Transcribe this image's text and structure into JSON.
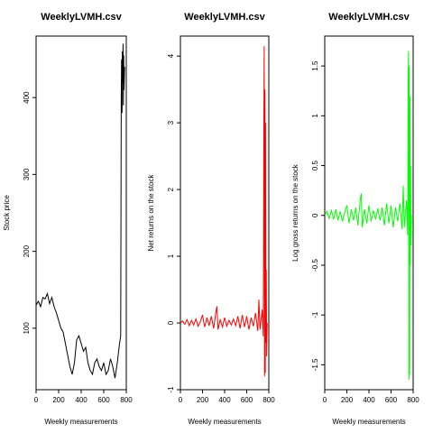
{
  "chart_data": [
    {
      "type": "line",
      "title": "WeeklyLVMH.csv",
      "xlabel": "Weekly measurements",
      "ylabel": "Stock price",
      "xlim": [
        0,
        800
      ],
      "ylim": [
        20,
        480
      ],
      "xticks": [
        0,
        200,
        400,
        600,
        800
      ],
      "yticks": [
        100,
        200,
        300,
        400
      ],
      "grid": false,
      "color": "#000000",
      "x": [
        0,
        20,
        40,
        60,
        80,
        100,
        120,
        140,
        160,
        180,
        200,
        220,
        240,
        260,
        280,
        300,
        320,
        340,
        360,
        380,
        400,
        420,
        440,
        460,
        480,
        500,
        520,
        540,
        560,
        580,
        600,
        620,
        640,
        660,
        680,
        700,
        720,
        740,
        750,
        755,
        758,
        762,
        765,
        768,
        771,
        774,
        777,
        780,
        785
      ],
      "y": [
        130,
        135,
        128,
        140,
        138,
        145,
        132,
        140,
        128,
        120,
        110,
        100,
        95,
        80,
        65,
        50,
        40,
        55,
        85,
        90,
        80,
        70,
        75,
        55,
        45,
        40,
        55,
        60,
        50,
        45,
        55,
        40,
        45,
        60,
        50,
        35,
        55,
        80,
        90,
        400,
        450,
        380,
        460,
        420,
        470,
        390,
        455,
        410,
        440
      ]
    },
    {
      "type": "line",
      "title": "WeeklyLVMH.csv",
      "xlabel": "Weekly measurements",
      "ylabel": "Net returns on the stock",
      "xlim": [
        0,
        800
      ],
      "ylim": [
        -1,
        4.3
      ],
      "xticks": [
        0,
        200,
        400,
        600,
        800
      ],
      "yticks": [
        -1,
        0,
        1,
        2,
        3,
        4
      ],
      "grid": false,
      "color": "#ff0000",
      "x": [
        0,
        20,
        40,
        60,
        80,
        100,
        120,
        140,
        160,
        180,
        200,
        220,
        240,
        260,
        280,
        300,
        320,
        330,
        340,
        360,
        380,
        400,
        420,
        440,
        460,
        480,
        500,
        520,
        540,
        560,
        580,
        600,
        620,
        640,
        660,
        680,
        700,
        710,
        720,
        740,
        750,
        755,
        758,
        762,
        765,
        768,
        771,
        774,
        777,
        780,
        785
      ],
      "y": [
        0.0,
        0.03,
        -0.02,
        0.05,
        -0.04,
        0.04,
        -0.03,
        0.06,
        -0.05,
        0.02,
        0.12,
        -0.06,
        0.08,
        -0.04,
        0.1,
        -0.08,
        0.15,
        0.25,
        -0.1,
        0.05,
        -0.06,
        0.08,
        -0.05,
        0.04,
        -0.03,
        0.06,
        -0.04,
        0.1,
        -0.08,
        0.12,
        -0.06,
        0.1,
        -0.1,
        0.08,
        -0.05,
        0.15,
        -0.12,
        0.35,
        -0.1,
        0.2,
        -0.2,
        3.0,
        4.15,
        -0.8,
        3.5,
        -0.75,
        3.0,
        -0.3,
        0.8,
        -0.5,
        0.0
      ]
    },
    {
      "type": "line",
      "title": "WeeklyLVMH.csv",
      "xlabel": "Weekly measurements",
      "ylabel": "Log gross returns on the stock",
      "xlim": [
        0,
        800
      ],
      "ylim": [
        -1.75,
        1.8
      ],
      "xticks": [
        0,
        200,
        400,
        600,
        800
      ],
      "yticks": [
        -1.5,
        -1.0,
        -0.5,
        0.0,
        0.5,
        1.0,
        1.5
      ],
      "grid": false,
      "color": "#00ff00",
      "x": [
        0,
        20,
        40,
        60,
        80,
        100,
        120,
        140,
        160,
        180,
        200,
        220,
        240,
        260,
        280,
        300,
        320,
        330,
        340,
        360,
        380,
        400,
        420,
        440,
        460,
        480,
        500,
        520,
        540,
        560,
        580,
        600,
        620,
        640,
        660,
        680,
        700,
        710,
        720,
        740,
        750,
        755,
        758,
        762,
        765,
        768,
        771,
        774,
        777,
        780,
        785
      ],
      "y": [
        0.0,
        0.04,
        -0.03,
        0.05,
        -0.04,
        0.06,
        -0.05,
        0.04,
        -0.06,
        0.03,
        0.1,
        -0.08,
        0.06,
        -0.05,
        0.08,
        -0.1,
        0.15,
        0.22,
        -0.12,
        0.06,
        -0.08,
        0.1,
        -0.06,
        0.05,
        -0.04,
        0.07,
        -0.05,
        0.08,
        -0.1,
        0.12,
        -0.08,
        0.1,
        -0.12,
        0.08,
        -0.06,
        0.12,
        -0.14,
        0.3,
        -0.12,
        0.15,
        -0.2,
        1.4,
        1.65,
        -1.65,
        1.5,
        -1.6,
        1.2,
        -0.5,
        0.5,
        -0.3,
        0.0
      ]
    }
  ]
}
